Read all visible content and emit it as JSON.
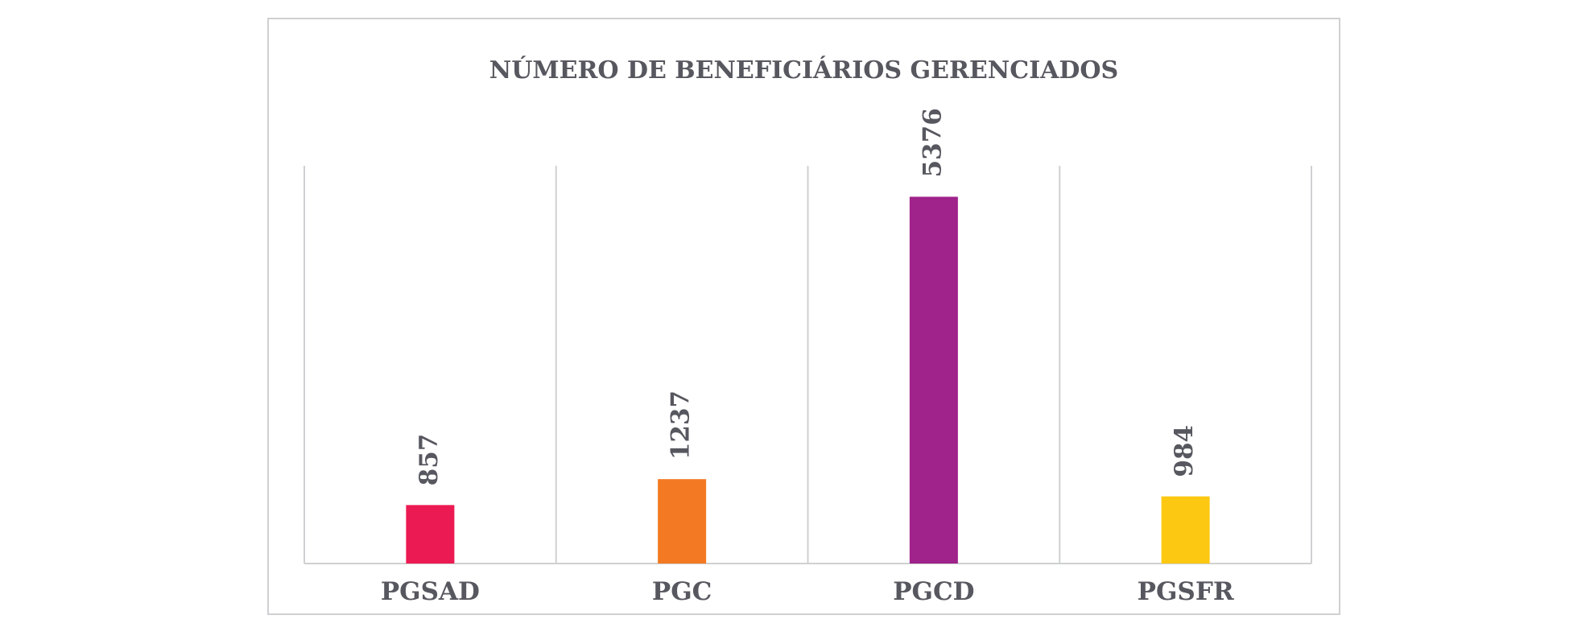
{
  "chart_data": {
    "type": "bar",
    "title": "NÚMERO DE BENEFICIÁRIOS GERENCIADOS",
    "categories": [
      "PGSAD",
      "PGC",
      "PGCD",
      "PGSFR"
    ],
    "values": [
      857,
      1237,
      5376,
      984
    ],
    "colors": [
      "#ec1a52",
      "#f37a22",
      "#a0228b",
      "#fdc811"
    ],
    "ylim": [
      0,
      5900
    ],
    "grid": false,
    "legend": "none",
    "data_labels": "rotated-vertical"
  }
}
